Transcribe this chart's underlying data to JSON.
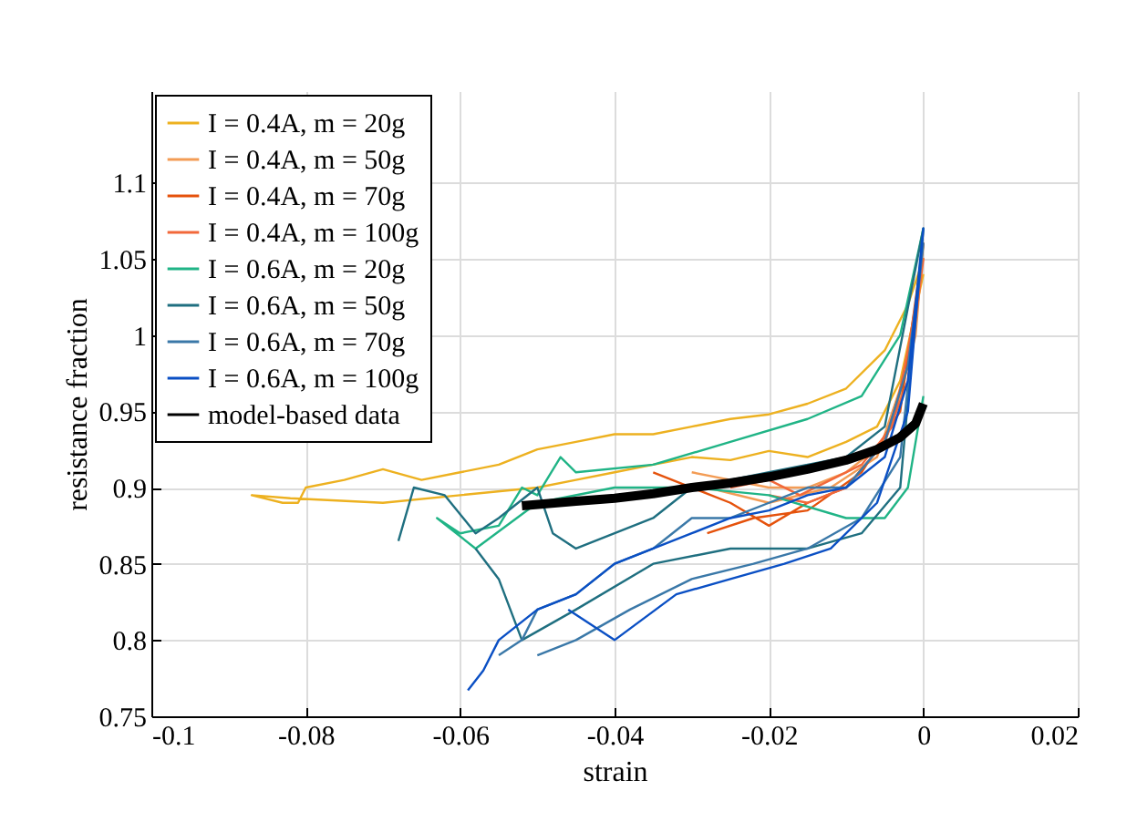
{
  "chart_data": {
    "type": "line",
    "xlabel": "strain",
    "ylabel": "resistance fraction",
    "xlim": [
      -0.1,
      0.02
    ],
    "xticks": [
      -0.1,
      -0.08,
      -0.06,
      -0.04,
      -0.02,
      0,
      0.02
    ],
    "ylim": [
      0.75,
      1.16
    ],
    "yticks": [
      0.75,
      0.8,
      0.85,
      0.9,
      0.95,
      1,
      1.05,
      1.1
    ],
    "grid": true,
    "legend": "top left",
    "series": [
      {
        "name": "I = 0.4A, m = 20g",
        "color": "#edb120",
        "x": [
          0,
          -0.002,
          -0.005,
          -0.01,
          -0.015,
          -0.02,
          -0.025,
          -0.03,
          -0.035,
          -0.04,
          -0.045,
          -0.05,
          -0.055,
          -0.06,
          -0.065,
          -0.07,
          -0.075,
          -0.08,
          -0.081,
          -0.083,
          -0.087,
          -0.082,
          -0.07,
          -0.06,
          -0.05,
          -0.045,
          -0.04,
          -0.035,
          -0.03,
          -0.025,
          -0.02,
          -0.015,
          -0.01,
          -0.006,
          -0.003,
          0
        ],
        "values": [
          1.05,
          1.02,
          0.99,
          0.965,
          0.955,
          0.948,
          0.945,
          0.94,
          0.935,
          0.935,
          0.93,
          0.925,
          0.915,
          0.91,
          0.905,
          0.912,
          0.905,
          0.9,
          0.89,
          0.89,
          0.895,
          0.893,
          0.89,
          0.895,
          0.9,
          0.905,
          0.91,
          0.915,
          0.92,
          0.918,
          0.924,
          0.92,
          0.93,
          0.94,
          0.97,
          1.04
        ]
      },
      {
        "name": "I = 0.4A, m = 50g",
        "color": "#f39c55",
        "x": [
          -0.03,
          -0.025,
          -0.02,
          -0.015,
          -0.01,
          -0.005,
          -0.003,
          -0.001,
          0,
          -0.002,
          -0.006,
          -0.012,
          -0.02,
          -0.028
        ],
        "values": [
          0.91,
          0.905,
          0.9,
          0.9,
          0.91,
          0.93,
          0.96,
          1.0,
          1.06,
          0.98,
          0.92,
          0.9,
          0.89,
          0.9
        ]
      },
      {
        "name": "I = 0.4A, m = 70g",
        "color": "#e5520c",
        "x": [
          -0.035,
          -0.03,
          -0.025,
          -0.02,
          -0.015,
          -0.01,
          -0.005,
          -0.002,
          0,
          -0.003,
          -0.008,
          -0.015,
          -0.022,
          -0.028
        ],
        "values": [
          0.91,
          0.9,
          0.89,
          0.875,
          0.89,
          0.9,
          0.93,
          0.98,
          1.06,
          0.95,
          0.91,
          0.885,
          0.88,
          0.87
        ]
      },
      {
        "name": "I = 0.4A, m = 100g",
        "color": "#f2683a",
        "x": [
          -0.025,
          -0.02,
          -0.016,
          -0.012,
          -0.008,
          -0.004,
          -0.002,
          0,
          -0.002,
          -0.005,
          -0.01,
          -0.015,
          -0.02
        ],
        "values": [
          0.9,
          0.905,
          0.895,
          0.905,
          0.915,
          0.94,
          0.99,
          1.05,
          0.97,
          0.93,
          0.9,
          0.89,
          0.895
        ]
      },
      {
        "name": "I = 0.6A, m = 20g",
        "color": "#20b486",
        "x": [
          0,
          -0.003,
          -0.008,
          -0.015,
          -0.025,
          -0.035,
          -0.045,
          -0.047,
          -0.05,
          -0.052,
          -0.055,
          -0.06,
          -0.063,
          -0.058,
          -0.05,
          -0.04,
          -0.03,
          -0.02,
          -0.01,
          -0.005,
          -0.002,
          0
        ],
        "values": [
          1.07,
          1.0,
          0.96,
          0.945,
          0.93,
          0.915,
          0.91,
          0.92,
          0.895,
          0.9,
          0.875,
          0.87,
          0.88,
          0.86,
          0.89,
          0.9,
          0.9,
          0.895,
          0.88,
          0.88,
          0.9,
          0.96
        ]
      },
      {
        "name": "I = 0.6A, m = 50g",
        "color": "#1f6f80",
        "x": [
          -0.068,
          -0.066,
          -0.062,
          -0.058,
          -0.055,
          -0.05,
          -0.048,
          -0.045,
          -0.04,
          -0.035,
          -0.03,
          -0.02,
          -0.01,
          -0.005,
          0,
          -0.003,
          -0.008,
          -0.015,
          -0.025,
          -0.035,
          -0.045,
          -0.052,
          -0.055,
          -0.058
        ],
        "values": [
          0.865,
          0.9,
          0.895,
          0.87,
          0.88,
          0.9,
          0.87,
          0.86,
          0.87,
          0.88,
          0.9,
          0.91,
          0.92,
          0.94,
          1.07,
          0.9,
          0.87,
          0.86,
          0.86,
          0.85,
          0.82,
          0.8,
          0.84,
          0.86
        ]
      },
      {
        "name": "I = 0.6A, m = 70g",
        "color": "#3a78a8",
        "x": [
          -0.055,
          -0.052,
          -0.05,
          -0.045,
          -0.04,
          -0.035,
          -0.03,
          -0.025,
          -0.02,
          -0.015,
          -0.01,
          -0.005,
          -0.002,
          0,
          -0.003,
          -0.008,
          -0.015,
          -0.022,
          -0.03,
          -0.038,
          -0.045,
          -0.05
        ],
        "values": [
          0.79,
          0.8,
          0.82,
          0.83,
          0.85,
          0.86,
          0.88,
          0.88,
          0.89,
          0.9,
          0.9,
          0.93,
          0.98,
          1.06,
          0.92,
          0.88,
          0.86,
          0.85,
          0.84,
          0.82,
          0.8,
          0.79
        ]
      },
      {
        "name": "I = 0.6A, m = 100g",
        "color": "#0a4fc4",
        "x": [
          -0.059,
          -0.057,
          -0.055,
          -0.05,
          -0.045,
          -0.04,
          -0.035,
          -0.03,
          -0.025,
          -0.02,
          -0.015,
          -0.01,
          -0.005,
          -0.002,
          0,
          -0.002,
          -0.006,
          -0.012,
          -0.018,
          -0.025,
          -0.032,
          -0.04,
          -0.046
        ],
        "values": [
          0.767,
          0.78,
          0.8,
          0.82,
          0.83,
          0.85,
          0.86,
          0.87,
          0.88,
          0.885,
          0.895,
          0.9,
          0.92,
          0.97,
          1.07,
          0.95,
          0.89,
          0.86,
          0.85,
          0.84,
          0.83,
          0.8,
          0.82
        ]
      },
      {
        "name": "model-based data",
        "color": "#000000",
        "x": [
          -0.052,
          -0.045,
          -0.04,
          -0.035,
          -0.03,
          -0.025,
          -0.02,
          -0.015,
          -0.01,
          -0.006,
          -0.003,
          -0.001,
          0
        ],
        "values": [
          0.888,
          0.891,
          0.893,
          0.896,
          0.9,
          0.903,
          0.907,
          0.912,
          0.918,
          0.925,
          0.933,
          0.942,
          0.955
        ]
      }
    ]
  }
}
